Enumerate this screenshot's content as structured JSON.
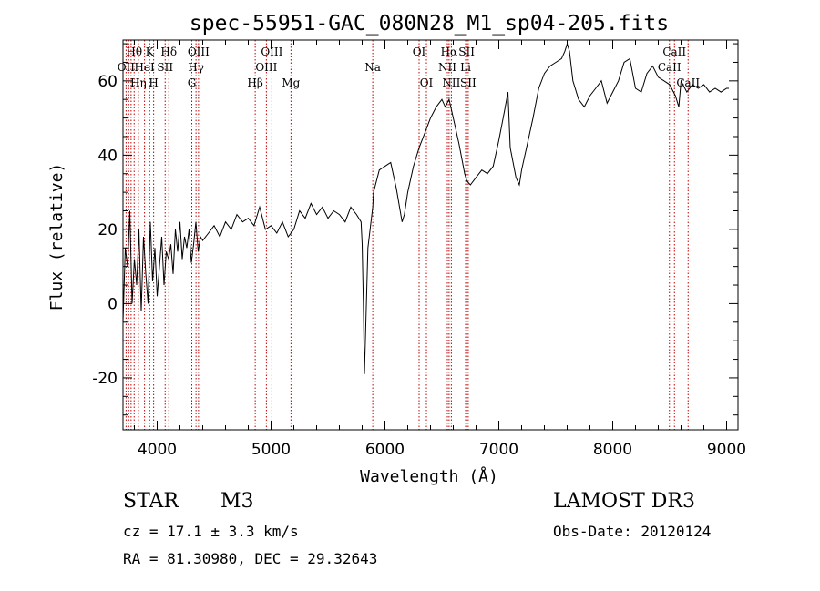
{
  "chart_data": {
    "type": "line",
    "title": "spec-55951-GAC_080N28_M1_sp04-205.fits",
    "xlabel": "Wavelength (Å)",
    "ylabel": "Flux (relative)",
    "xlim": [
      3700,
      9100
    ],
    "ylim": [
      -34,
      71
    ],
    "xticks": [
      4000,
      5000,
      6000,
      7000,
      8000,
      9000
    ],
    "yticks": [
      -20,
      0,
      20,
      40,
      60
    ],
    "series": [
      {
        "name": "spectrum",
        "x": [
          3700,
          3720,
          3740,
          3760,
          3780,
          3800,
          3820,
          3840,
          3860,
          3880,
          3900,
          3920,
          3940,
          3960,
          3980,
          4000,
          4020,
          4040,
          4060,
          4080,
          4100,
          4120,
          4140,
          4160,
          4180,
          4200,
          4220,
          4240,
          4260,
          4280,
          4300,
          4320,
          4340,
          4360,
          4380,
          4400,
          4450,
          4500,
          4550,
          4600,
          4650,
          4700,
          4750,
          4800,
          4850,
          4900,
          4950,
          5000,
          5050,
          5100,
          5150,
          5200,
          5250,
          5300,
          5350,
          5400,
          5450,
          5500,
          5550,
          5600,
          5650,
          5700,
          5750,
          5790,
          5800,
          5810,
          5820,
          5850,
          5893,
          5900,
          5950,
          6000,
          6050,
          6100,
          6150,
          6170,
          6200,
          6250,
          6300,
          6350,
          6400,
          6450,
          6500,
          6530,
          6563,
          6600,
          6650,
          6700,
          6720,
          6750,
          6800,
          6850,
          6900,
          6950,
          7000,
          7050,
          7080,
          7100,
          7150,
          7180,
          7200,
          7250,
          7300,
          7350,
          7400,
          7450,
          7500,
          7550,
          7580,
          7600,
          7620,
          7650,
          7700,
          7750,
          7800,
          7850,
          7900,
          7950,
          8000,
          8050,
          8100,
          8150,
          8200,
          8250,
          8300,
          8350,
          8400,
          8450,
          8500,
          8550,
          8580,
          8600,
          8650,
          8700,
          8750,
          8800,
          8850,
          8900,
          8950,
          9000,
          9020
        ],
        "values": [
          -5,
          15,
          10,
          25,
          0,
          12,
          5,
          20,
          -2,
          18,
          8,
          0,
          22,
          6,
          15,
          2,
          10,
          18,
          5,
          14,
          12,
          16,
          8,
          20,
          14,
          22,
          12,
          18,
          15,
          20,
          11,
          16,
          22,
          14,
          18,
          17,
          19,
          21,
          18,
          22,
          20,
          24,
          22,
          23,
          21,
          26,
          20,
          21,
          19,
          22,
          18,
          20,
          25,
          23,
          27,
          24,
          26,
          23,
          25,
          24,
          22,
          26,
          24,
          22,
          16,
          0,
          -19,
          15,
          26,
          30,
          36,
          37,
          38,
          31,
          22,
          24,
          30,
          37,
          42,
          46,
          50,
          53,
          55,
          53,
          55,
          50,
          43,
          35,
          33,
          32,
          34,
          36,
          35,
          37,
          44,
          52,
          57,
          42,
          34,
          32,
          36,
          43,
          50,
          58,
          62,
          64,
          65,
          66,
          68,
          70,
          68,
          60,
          55,
          53,
          56,
          58,
          60,
          54,
          57,
          60,
          65,
          66,
          58,
          57,
          62,
          64,
          61,
          60,
          59,
          56,
          53,
          60,
          57,
          59,
          58,
          59,
          57,
          58,
          57,
          58,
          58
        ]
      }
    ],
    "line_labels": [
      {
        "label": "Hθ",
        "x": 3798,
        "row": 0
      },
      {
        "label": "K",
        "x": 3934,
        "row": 0
      },
      {
        "label": "Hδ",
        "x": 4102,
        "row": 0
      },
      {
        "label": "OIII",
        "x": 4363,
        "row": 0
      },
      {
        "label": "OIII",
        "x": 5007,
        "row": 0
      },
      {
        "label": "OI",
        "x": 6300,
        "row": 0
      },
      {
        "label": "Hα",
        "x": 6563,
        "row": 0
      },
      {
        "label": "SII",
        "x": 6717,
        "row": 0
      },
      {
        "label": "CaII",
        "x": 8542,
        "row": 0
      },
      {
        "label": "OII",
        "x": 3727,
        "row": 1
      },
      {
        "label": "HeI",
        "x": 3889,
        "row": 1
      },
      {
        "label": "SII",
        "x": 4070,
        "row": 1
      },
      {
        "label": "Hγ",
        "x": 4341,
        "row": 1
      },
      {
        "label": "OIII",
        "x": 4959,
        "row": 1
      },
      {
        "label": "Na",
        "x": 5893,
        "row": 1
      },
      {
        "label": "NII",
        "x": 6548,
        "row": 1
      },
      {
        "label": "Li",
        "x": 6708,
        "row": 1
      },
      {
        "label": "CaII",
        "x": 8498,
        "row": 1
      },
      {
        "label": "Hη",
        "x": 3835,
        "row": 2
      },
      {
        "label": "H",
        "x": 3969,
        "row": 2
      },
      {
        "label": "G",
        "x": 4304,
        "row": 2
      },
      {
        "label": "Hβ",
        "x": 4861,
        "row": 2
      },
      {
        "label": "Mg",
        "x": 5175,
        "row": 2
      },
      {
        "label": "OI",
        "x": 6364,
        "row": 2
      },
      {
        "label": "NII",
        "x": 6583,
        "row": 2
      },
      {
        "label": "SII",
        "x": 6731,
        "row": 2
      },
      {
        "label": "CaII",
        "x": 8662,
        "row": 2
      }
    ],
    "line_x": [
      3727,
      3750,
      3771,
      3798,
      3835,
      3889,
      3934,
      3969,
      4070,
      4102,
      4304,
      4341,
      4363,
      4861,
      4959,
      5007,
      5175,
      5893,
      6300,
      6364,
      6548,
      6563,
      6583,
      6708,
      6717,
      6731,
      8498,
      8542,
      8662
    ],
    "annotation_prefix": "60"
  },
  "info": {
    "object_type": "STAR",
    "subclass": "M3",
    "survey": "LAMOST DR3",
    "cz": "cz = 17.1 ± 3.3 km/s",
    "obs_date": "Obs-Date: 20120124",
    "coords": "RA =  81.30980, DEC =  29.32643"
  },
  "colors": {
    "spectrum": "#000000",
    "line_markers": "#c00000",
    "background": "#ffffff"
  }
}
